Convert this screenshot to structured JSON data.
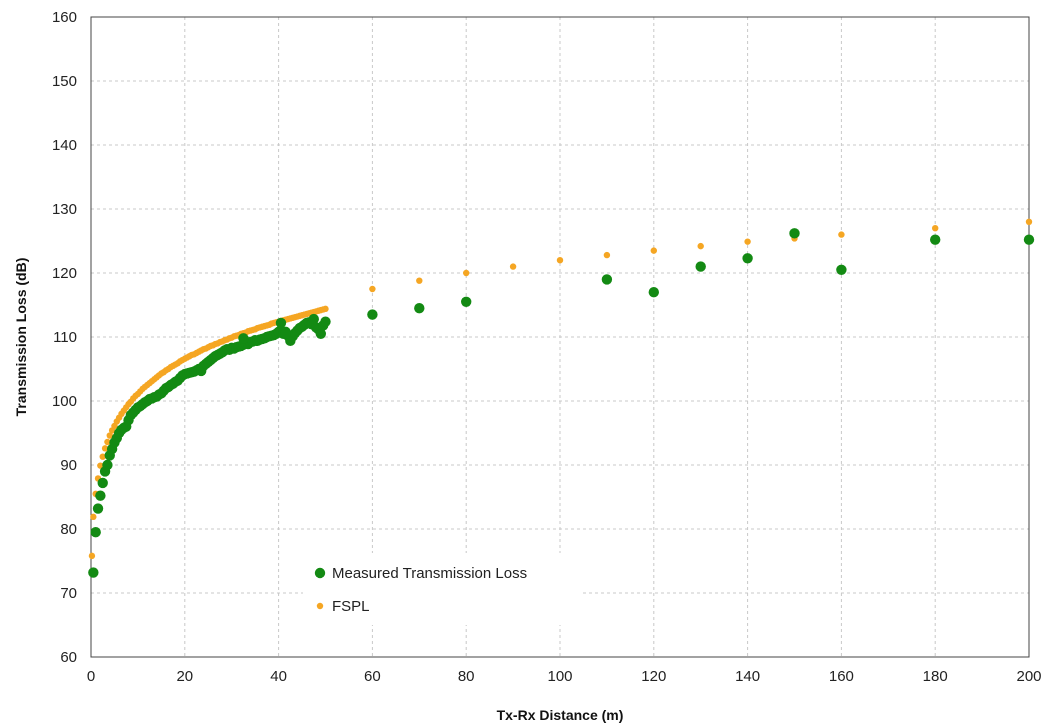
{
  "chart_data": {
    "type": "scatter",
    "xlabel": "Tx-Rx Distance  (m)",
    "ylabel": "Transmission  Loss (dB)",
    "xlim": [
      0,
      200
    ],
    "ylim": [
      60,
      160
    ],
    "x_ticks": [
      0,
      20,
      40,
      60,
      80,
      100,
      120,
      140,
      160,
      180,
      200
    ],
    "y_ticks": [
      60,
      70,
      80,
      90,
      100,
      110,
      120,
      130,
      140,
      150,
      160
    ],
    "x_tick_labels": [
      "0",
      "20",
      "40",
      "60",
      "80",
      "100",
      "120",
      "140",
      "160",
      "180",
      "200"
    ],
    "y_tick_labels": [
      "60",
      "70",
      "80",
      "90",
      "100",
      "110",
      "120",
      "130",
      "140",
      "150",
      "160"
    ],
    "grid": true,
    "legend_position": "bottom-left",
    "series": [
      {
        "name": "Measured Transmission Loss",
        "color": "#138a13",
        "marker": "circle-large",
        "points": [
          [
            0.5,
            73.2
          ],
          [
            1,
            79.5
          ],
          [
            1.5,
            83.2
          ],
          [
            2,
            85.2
          ],
          [
            2.5,
            87.2
          ],
          [
            3,
            89
          ],
          [
            3.5,
            90
          ],
          [
            4,
            91.5
          ],
          [
            4.5,
            92.5
          ],
          [
            5,
            93.5
          ],
          [
            5.5,
            94.2
          ],
          [
            6,
            95
          ],
          [
            6.5,
            95.5
          ],
          [
            7,
            95.8
          ],
          [
            7.5,
            96
          ],
          [
            8,
            97
          ],
          [
            8.5,
            97.8
          ],
          [
            9,
            98.2
          ],
          [
            9.5,
            98.6
          ],
          [
            10,
            99
          ],
          [
            10.5,
            99.2
          ],
          [
            11,
            99.5
          ],
          [
            11.5,
            99.8
          ],
          [
            12,
            100
          ],
          [
            12.5,
            100.3
          ],
          [
            13,
            100.4
          ],
          [
            13.5,
            100.6
          ],
          [
            14,
            100.7
          ],
          [
            14.5,
            101
          ],
          [
            15,
            101.2
          ],
          [
            15.5,
            101.6
          ],
          [
            16,
            102
          ],
          [
            16.5,
            102.2
          ],
          [
            17,
            102.5
          ],
          [
            17.5,
            102.7
          ],
          [
            18,
            103
          ],
          [
            18.5,
            103.2
          ],
          [
            19,
            103.6
          ],
          [
            19.5,
            104
          ],
          [
            20,
            104.2
          ],
          [
            20.5,
            104.3
          ],
          [
            21,
            104.4
          ],
          [
            21.5,
            104.5
          ],
          [
            22,
            104.6
          ],
          [
            22.5,
            104.8
          ],
          [
            23,
            105
          ],
          [
            23.5,
            104.7
          ],
          [
            24,
            105.5
          ],
          [
            24.5,
            105.8
          ],
          [
            25,
            106.1
          ],
          [
            25.5,
            106.4
          ],
          [
            26,
            106.7
          ],
          [
            26.5,
            107
          ],
          [
            27,
            107.2
          ],
          [
            27.5,
            107.4
          ],
          [
            28,
            107.6
          ],
          [
            28.5,
            107.9
          ],
          [
            29,
            108.1
          ],
          [
            29.5,
            108
          ],
          [
            30,
            108.3
          ],
          [
            30.5,
            108.2
          ],
          [
            31,
            108.4
          ],
          [
            31.5,
            108.5
          ],
          [
            32,
            108.6
          ],
          [
            32.5,
            108.8
          ],
          [
            33,
            109
          ],
          [
            33.5,
            108.9
          ],
          [
            34,
            109.2
          ],
          [
            34.5,
            109.3
          ],
          [
            35,
            109.5
          ],
          [
            35.5,
            109.4
          ],
          [
            36,
            109.6
          ],
          [
            36.5,
            109.7
          ],
          [
            37,
            109.8
          ],
          [
            37.5,
            110
          ],
          [
            38,
            110.1
          ],
          [
            38.5,
            110.2
          ],
          [
            39,
            110.3
          ],
          [
            39.5,
            110.5
          ],
          [
            40,
            110.8
          ],
          [
            40.5,
            111
          ],
          [
            41,
            110.5
          ],
          [
            41.5,
            110.8
          ],
          [
            42,
            110.2
          ],
          [
            42.5,
            109.4
          ],
          [
            43,
            110.1
          ],
          [
            43.5,
            110.6
          ],
          [
            44,
            111
          ],
          [
            44.5,
            111.4
          ],
          [
            45,
            111.6
          ],
          [
            45.5,
            111.9
          ],
          [
            46,
            112.2
          ],
          [
            46.5,
            112.3
          ],
          [
            47,
            112
          ],
          [
            47.5,
            112.8
          ],
          [
            48,
            111.5
          ],
          [
            48.5,
            111.2
          ],
          [
            49,
            110.5
          ],
          [
            49.5,
            111.8
          ],
          [
            50,
            112.4
          ],
          [
            40.5,
            112.2
          ],
          [
            41.5,
            110.5
          ],
          [
            32.5,
            109.8
          ],
          [
            60,
            113.5
          ],
          [
            70,
            114.5
          ],
          [
            80,
            115.5
          ],
          [
            110,
            119
          ],
          [
            120,
            117
          ],
          [
            130,
            121
          ],
          [
            140,
            122.3
          ],
          [
            150,
            126.2
          ],
          [
            160,
            120.5
          ],
          [
            180,
            125.2
          ],
          [
            200,
            125.2
          ]
        ]
      },
      {
        "name": "FSPL",
        "color": "#f5a623",
        "marker": "circle-small",
        "points": [
          [
            0.2,
            75.8
          ],
          [
            0.5,
            81.9
          ],
          [
            1,
            85.5
          ],
          [
            1.5,
            87.9
          ],
          [
            2,
            89.9
          ],
          [
            2.5,
            91.3
          ],
          [
            3,
            92.6
          ],
          [
            3.5,
            93.6
          ],
          [
            4,
            94.6
          ],
          [
            4.5,
            95.4
          ],
          [
            5,
            96.1
          ],
          [
            5.5,
            96.8
          ],
          [
            6,
            97.4
          ],
          [
            6.5,
            98
          ],
          [
            7,
            98.5
          ],
          [
            7.5,
            99
          ],
          [
            8,
            99.5
          ],
          [
            8.5,
            99.9
          ],
          [
            9,
            100.4
          ],
          [
            9.5,
            100.8
          ],
          [
            10,
            101.1
          ],
          [
            10.5,
            101.5
          ],
          [
            11,
            101.9
          ],
          [
            11.5,
            102.2
          ],
          [
            12,
            102.5
          ],
          [
            12.5,
            102.8
          ],
          [
            13,
            103.1
          ],
          [
            13.5,
            103.4
          ],
          [
            14,
            103.7
          ],
          [
            14.5,
            104
          ],
          [
            15,
            104.3
          ],
          [
            15.5,
            104.5
          ],
          [
            16,
            104.8
          ],
          [
            16.5,
            105
          ],
          [
            17,
            105.3
          ],
          [
            17.5,
            105.5
          ],
          [
            18,
            105.7
          ],
          [
            18.5,
            105.9
          ],
          [
            19,
            106.2
          ],
          [
            19.5,
            106.4
          ],
          [
            20,
            106.6
          ],
          [
            21,
            107
          ],
          [
            22,
            107.3
          ],
          [
            23,
            107.7
          ],
          [
            24,
            108.1
          ],
          [
            25,
            108.4
          ],
          [
            26,
            108.7
          ],
          [
            27,
            109
          ],
          [
            28,
            109.3
          ],
          [
            29,
            109.6
          ],
          [
            30,
            109.9
          ],
          [
            31,
            110.2
          ],
          [
            32,
            110.5
          ],
          [
            33,
            110.7
          ],
          [
            34,
            111
          ],
          [
            35,
            111.2
          ],
          [
            36,
            111.5
          ],
          [
            37,
            111.7
          ],
          [
            38,
            111.9
          ],
          [
            39,
            112.2
          ],
          [
            40,
            112.4
          ],
          [
            41,
            112.6
          ],
          [
            42,
            112.8
          ],
          [
            43,
            113
          ],
          [
            44,
            113.2
          ],
          [
            45,
            113.4
          ],
          [
            46,
            113.6
          ],
          [
            47,
            113.8
          ],
          [
            48,
            114
          ],
          [
            49,
            114.2
          ],
          [
            50,
            114.4
          ],
          [
            20.5,
            106.8
          ],
          [
            21.5,
            107.2
          ],
          [
            22.5,
            107.5
          ],
          [
            23.5,
            107.9
          ],
          [
            24.5,
            108.2
          ],
          [
            25.5,
            108.6
          ],
          [
            26.5,
            108.9
          ],
          [
            27.5,
            109.2
          ],
          [
            28.5,
            109.5
          ],
          [
            29.5,
            109.8
          ],
          [
            30.5,
            110.1
          ],
          [
            31.5,
            110.3
          ],
          [
            32.5,
            110.6
          ],
          [
            33.5,
            110.9
          ],
          [
            34.5,
            111.1
          ],
          [
            35.5,
            111.4
          ],
          [
            36.5,
            111.6
          ],
          [
            37.5,
            111.8
          ],
          [
            38.5,
            112.1
          ],
          [
            39.5,
            112.3
          ],
          [
            40.5,
            112.5
          ],
          [
            41.5,
            112.7
          ],
          [
            42.5,
            112.9
          ],
          [
            43.5,
            113.1
          ],
          [
            44.5,
            113.3
          ],
          [
            45.5,
            113.5
          ],
          [
            46.5,
            113.7
          ],
          [
            47.5,
            113.9
          ],
          [
            48.5,
            114.1
          ],
          [
            49.5,
            114.3
          ],
          [
            60,
            117.5
          ],
          [
            70,
            118.8
          ],
          [
            80,
            120
          ],
          [
            90,
            121
          ],
          [
            100,
            122
          ],
          [
            110,
            122.8
          ],
          [
            120,
            123.5
          ],
          [
            130,
            124.2
          ],
          [
            140,
            124.9
          ],
          [
            150,
            125.4
          ],
          [
            160,
            126
          ],
          [
            180,
            127
          ],
          [
            200,
            128
          ]
        ]
      }
    ]
  }
}
